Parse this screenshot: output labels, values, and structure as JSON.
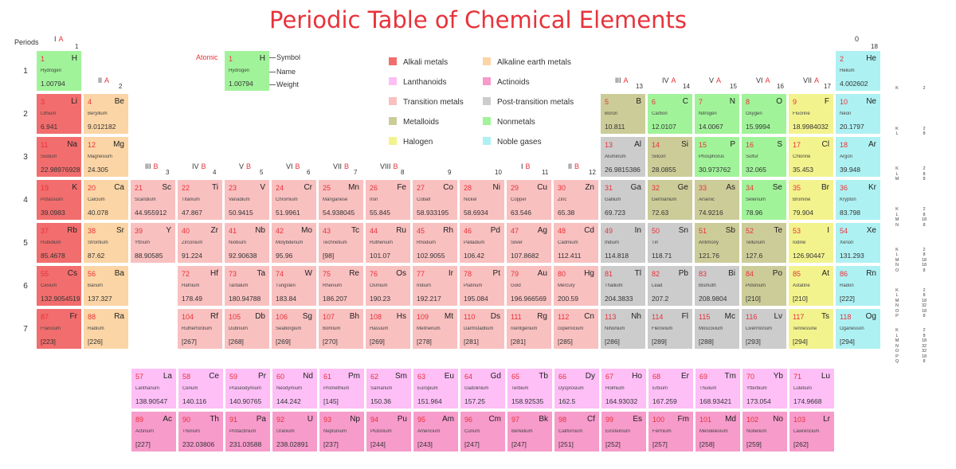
{
  "title": "Periodic Table of Chemical Elements",
  "periods_label": "Periods",
  "rows": [
    "1",
    "2",
    "3",
    "4",
    "5",
    "6",
    "7"
  ],
  "key": {
    "atomic_label": "Atomic",
    "symbol_label": "Symbol",
    "name_label": "Name",
    "weight_label": "Weight",
    "n": "1",
    "s": "H",
    "nm": "Hydrogen",
    "w": "1.00794"
  },
  "groups": [
    {
      "roman": "I",
      "letter": "A",
      "num": "1"
    },
    {
      "roman": "II",
      "letter": "A",
      "num": "2"
    },
    {
      "roman": "III",
      "letter": "B",
      "num": "3"
    },
    {
      "roman": "IV",
      "letter": "B",
      "num": "4"
    },
    {
      "roman": "V",
      "letter": "B",
      "num": "5"
    },
    {
      "roman": "VI",
      "letter": "B",
      "num": "6"
    },
    {
      "roman": "VII",
      "letter": "B",
      "num": "7"
    },
    {
      "roman": "VIII",
      "letter": "B",
      "num": "8"
    },
    {
      "roman": "",
      "letter": "",
      "num": "9"
    },
    {
      "roman": "",
      "letter": "",
      "num": "10"
    },
    {
      "roman": "I",
      "letter": "B",
      "num": "11"
    },
    {
      "roman": "II",
      "letter": "B",
      "num": "12"
    },
    {
      "roman": "III",
      "letter": "A",
      "num": "13"
    },
    {
      "roman": "IV",
      "letter": "A",
      "num": "14"
    },
    {
      "roman": "V",
      "letter": "A",
      "num": "15"
    },
    {
      "roman": "VI",
      "letter": "A",
      "num": "16"
    },
    {
      "roman": "VII",
      "letter": "A",
      "num": "17"
    },
    {
      "roman": "0",
      "letter": "",
      "num": "18"
    }
  ],
  "legend": [
    {
      "label": "Alkali metals",
      "color": "#f26d6d"
    },
    {
      "label": "Alkaline earth metals",
      "color": "#fbd5a5"
    },
    {
      "label": "Lanthanoids",
      "color": "#fdbff6"
    },
    {
      "label": "Actinoids",
      "color": "#f79bcb"
    },
    {
      "label": "Transition metals",
      "color": "#f9c0c0"
    },
    {
      "label": "Post-transition metals",
      "color": "#cccccc"
    },
    {
      "label": "Metalloids",
      "color": "#cccc99"
    },
    {
      "label": "Nonmetals",
      "color": "#a1f39a"
    },
    {
      "label": "Halogen",
      "color": "#f3f38e"
    },
    {
      "label": "Noble gases",
      "color": "#aef1f3"
    }
  ],
  "shells": [
    "K\t2",
    "K\t2\nL\t8",
    "K\t2\nL\t8\nM\t8",
    "K\t2\nL\t8\nM\t18\nN\t8",
    "K\t2\nL\t8\nM\t18\nN\t18\nO\t8",
    "K\t2\nL\t8\nM\t18\nN\t32\nO\t18\nP\t8",
    "K\t2\nL\t8\nM\t18\nN\t32\nO\t32\nP\t18\nQ\t8"
  ],
  "elements": [
    {
      "n": "1",
      "s": "H",
      "nm": "Hydrogen",
      "w": "1.00794",
      "c": "nonmetal",
      "col": 1,
      "row": 1
    },
    {
      "n": "2",
      "s": "He",
      "nm": "Helium",
      "w": "4.002602",
      "c": "noble",
      "col": 18,
      "row": 1
    },
    {
      "n": "3",
      "s": "Li",
      "nm": "Lithium",
      "w": "6.941",
      "c": "alkali",
      "col": 1,
      "row": 2
    },
    {
      "n": "4",
      "s": "Be",
      "nm": "Beryllium",
      "w": "9.012182",
      "c": "alkaline",
      "col": 2,
      "row": 2
    },
    {
      "n": "5",
      "s": "B",
      "nm": "Boron",
      "w": "10.811",
      "c": "metalloid",
      "col": 13,
      "row": 2
    },
    {
      "n": "6",
      "s": "C",
      "nm": "Carbon",
      "w": "12.0107",
      "c": "nonmetal",
      "col": 14,
      "row": 2
    },
    {
      "n": "7",
      "s": "N",
      "nm": "Nitrogen",
      "w": "14.0067",
      "c": "nonmetal",
      "col": 15,
      "row": 2
    },
    {
      "n": "8",
      "s": "O",
      "nm": "Oxygen",
      "w": "15.9994",
      "c": "nonmetal",
      "col": 16,
      "row": 2
    },
    {
      "n": "9",
      "s": "F",
      "nm": "Fluorine",
      "w": "18.9984032",
      "c": "halogen",
      "col": 17,
      "row": 2
    },
    {
      "n": "10",
      "s": "Ne",
      "nm": "Neon",
      "w": "20.1797",
      "c": "noble",
      "col": 18,
      "row": 2
    },
    {
      "n": "11",
      "s": "Na",
      "nm": "Sodium",
      "w": "22.98976928",
      "c": "alkali",
      "col": 1,
      "row": 3
    },
    {
      "n": "12",
      "s": "Mg",
      "nm": "Magnesium",
      "w": "24.305",
      "c": "alkaline",
      "col": 2,
      "row": 3
    },
    {
      "n": "13",
      "s": "Al",
      "nm": "Aluminum",
      "w": "26.9815386",
      "c": "post",
      "col": 13,
      "row": 3
    },
    {
      "n": "14",
      "s": "Si",
      "nm": "Silicon",
      "w": "28.0855",
      "c": "metalloid",
      "col": 14,
      "row": 3
    },
    {
      "n": "15",
      "s": "P",
      "nm": "Phosphorus",
      "w": "30.973762",
      "c": "nonmetal",
      "col": 15,
      "row": 3
    },
    {
      "n": "16",
      "s": "S",
      "nm": "Sulfur",
      "w": "32.065",
      "c": "nonmetal",
      "col": 16,
      "row": 3
    },
    {
      "n": "17",
      "s": "Cl",
      "nm": "Chlorine",
      "w": "35.453",
      "c": "halogen",
      "col": 17,
      "row": 3
    },
    {
      "n": "18",
      "s": "Ar",
      "nm": "Argon",
      "w": "39.948",
      "c": "noble",
      "col": 18,
      "row": 3
    },
    {
      "n": "19",
      "s": "K",
      "nm": "Potassium",
      "w": "39.0983",
      "c": "alkali",
      "col": 1,
      "row": 4
    },
    {
      "n": "20",
      "s": "Ca",
      "nm": "Calcium",
      "w": "40.078",
      "c": "alkaline",
      "col": 2,
      "row": 4
    },
    {
      "n": "21",
      "s": "Sc",
      "nm": "Scandium",
      "w": "44.955912",
      "c": "trans",
      "col": 3,
      "row": 4
    },
    {
      "n": "22",
      "s": "Ti",
      "nm": "Titanium",
      "w": "47.867",
      "c": "trans",
      "col": 4,
      "row": 4
    },
    {
      "n": "23",
      "s": "V",
      "nm": "Vanadium",
      "w": "50.9415",
      "c": "trans",
      "col": 5,
      "row": 4
    },
    {
      "n": "24",
      "s": "Cr",
      "nm": "Chromium",
      "w": "51.9961",
      "c": "trans",
      "col": 6,
      "row": 4
    },
    {
      "n": "25",
      "s": "Mn",
      "nm": "Manganese",
      "w": "54.938045",
      "c": "trans",
      "col": 7,
      "row": 4
    },
    {
      "n": "26",
      "s": "Fe",
      "nm": "Iron",
      "w": "55.845",
      "c": "trans",
      "col": 8,
      "row": 4
    },
    {
      "n": "27",
      "s": "Co",
      "nm": "Cobalt",
      "w": "58.933195",
      "c": "trans",
      "col": 9,
      "row": 4
    },
    {
      "n": "28",
      "s": "Ni",
      "nm": "Nickel",
      "w": "58.6934",
      "c": "trans",
      "col": 10,
      "row": 4
    },
    {
      "n": "29",
      "s": "Cu",
      "nm": "Copper",
      "w": "63.546",
      "c": "trans",
      "col": 11,
      "row": 4
    },
    {
      "n": "30",
      "s": "Zn",
      "nm": "Zinc",
      "w": "65.38",
      "c": "trans",
      "col": 12,
      "row": 4
    },
    {
      "n": "31",
      "s": "Ga",
      "nm": "Gallium",
      "w": "69.723",
      "c": "post",
      "col": 13,
      "row": 4
    },
    {
      "n": "32",
      "s": "Ge",
      "nm": "Germanium",
      "w": "72.63",
      "c": "metalloid",
      "col": 14,
      "row": 4
    },
    {
      "n": "33",
      "s": "As",
      "nm": "Arsenic",
      "w": "74.9216",
      "c": "metalloid",
      "col": 15,
      "row": 4
    },
    {
      "n": "34",
      "s": "Se",
      "nm": "Selenium",
      "w": "78.96",
      "c": "nonmetal",
      "col": 16,
      "row": 4
    },
    {
      "n": "35",
      "s": "Br",
      "nm": "Bromine",
      "w": "79.904",
      "c": "halogen",
      "col": 17,
      "row": 4
    },
    {
      "n": "36",
      "s": "Kr",
      "nm": "Krypton",
      "w": "83.798",
      "c": "noble",
      "col": 18,
      "row": 4
    },
    {
      "n": "37",
      "s": "Rb",
      "nm": "Rubidium",
      "w": "85.4678",
      "c": "alkali",
      "col": 1,
      "row": 5
    },
    {
      "n": "38",
      "s": "Sr",
      "nm": "Strontium",
      "w": "87.62",
      "c": "alkaline",
      "col": 2,
      "row": 5
    },
    {
      "n": "39",
      "s": "Y",
      "nm": "Yttrium",
      "w": "88.90585",
      "c": "trans",
      "col": 3,
      "row": 5
    },
    {
      "n": "40",
      "s": "Zr",
      "nm": "Zirconium",
      "w": "91.224",
      "c": "trans",
      "col": 4,
      "row": 5
    },
    {
      "n": "41",
      "s": "Nb",
      "nm": "Niobium",
      "w": "92.90638",
      "c": "trans",
      "col": 5,
      "row": 5
    },
    {
      "n": "42",
      "s": "Mo",
      "nm": "Molybdenum",
      "w": "95.96",
      "c": "trans",
      "col": 6,
      "row": 5
    },
    {
      "n": "43",
      "s": "Tc",
      "nm": "Technetium",
      "w": "[98]",
      "c": "trans",
      "col": 7,
      "row": 5
    },
    {
      "n": "44",
      "s": "Ru",
      "nm": "Ruthenium",
      "w": "101.07",
      "c": "trans",
      "col": 8,
      "row": 5
    },
    {
      "n": "45",
      "s": "Rh",
      "nm": "Rhodium",
      "w": "102.9055",
      "c": "trans",
      "col": 9,
      "row": 5
    },
    {
      "n": "46",
      "s": "Pd",
      "nm": "Palladium",
      "w": "106.42",
      "c": "trans",
      "col": 10,
      "row": 5
    },
    {
      "n": "47",
      "s": "Ag",
      "nm": "Silver",
      "w": "107.8682",
      "c": "trans",
      "col": 11,
      "row": 5
    },
    {
      "n": "48",
      "s": "Cd",
      "nm": "Cadmium",
      "w": "112.411",
      "c": "trans",
      "col": 12,
      "row": 5
    },
    {
      "n": "49",
      "s": "In",
      "nm": "Indium",
      "w": "114.818",
      "c": "post",
      "col": 13,
      "row": 5
    },
    {
      "n": "50",
      "s": "Sn",
      "nm": "Tin",
      "w": "118.71",
      "c": "post",
      "col": 14,
      "row": 5
    },
    {
      "n": "51",
      "s": "Sb",
      "nm": "Antimony",
      "w": "121.76",
      "c": "metalloid",
      "col": 15,
      "row": 5
    },
    {
      "n": "52",
      "s": "Te",
      "nm": "Tellurium",
      "w": "127.6",
      "c": "metalloid",
      "col": 16,
      "row": 5
    },
    {
      "n": "53",
      "s": "I",
      "nm": "Iodine",
      "w": "126.90447",
      "c": "halogen",
      "col": 17,
      "row": 5
    },
    {
      "n": "54",
      "s": "Xe",
      "nm": "Xenon",
      "w": "131.293",
      "c": "noble",
      "col": 18,
      "row": 5
    },
    {
      "n": "55",
      "s": "Cs",
      "nm": "Cesium",
      "w": "132.9054519",
      "c": "alkali",
      "col": 1,
      "row": 6
    },
    {
      "n": "56",
      "s": "Ba",
      "nm": "Barium",
      "w": "137.327",
      "c": "alkaline",
      "col": 2,
      "row": 6
    },
    {
      "n": "72",
      "s": "Hf",
      "nm": "Hafnium",
      "w": "178.49",
      "c": "trans",
      "col": 4,
      "row": 6
    },
    {
      "n": "73",
      "s": "Ta",
      "nm": "Tantalum",
      "w": "180.94788",
      "c": "trans",
      "col": 5,
      "row": 6
    },
    {
      "n": "74",
      "s": "W",
      "nm": "Tungsten",
      "w": "183.84",
      "c": "trans",
      "col": 6,
      "row": 6
    },
    {
      "n": "75",
      "s": "Re",
      "nm": "Rhenium",
      "w": "186.207",
      "c": "trans",
      "col": 7,
      "row": 6
    },
    {
      "n": "76",
      "s": "Os",
      "nm": "Osmium",
      "w": "190.23",
      "c": "trans",
      "col": 8,
      "row": 6
    },
    {
      "n": "77",
      "s": "Ir",
      "nm": "Iridium",
      "w": "192.217",
      "c": "trans",
      "col": 9,
      "row": 6
    },
    {
      "n": "78",
      "s": "Pt",
      "nm": "Platinum",
      "w": "195.084",
      "c": "trans",
      "col": 10,
      "row": 6
    },
    {
      "n": "79",
      "s": "Au",
      "nm": "Gold",
      "w": "196.966569",
      "c": "trans",
      "col": 11,
      "row": 6
    },
    {
      "n": "80",
      "s": "Hg",
      "nm": "Mercury",
      "w": "200.59",
      "c": "trans",
      "col": 12,
      "row": 6
    },
    {
      "n": "81",
      "s": "Tl",
      "nm": "Thallium",
      "w": "204.3833",
      "c": "post",
      "col": 13,
      "row": 6
    },
    {
      "n": "82",
      "s": "Pb",
      "nm": "Lead",
      "w": "207.2",
      "c": "post",
      "col": 14,
      "row": 6
    },
    {
      "n": "83",
      "s": "Bi",
      "nm": "Bismuth",
      "w": "208.9804",
      "c": "post",
      "col": 15,
      "row": 6
    },
    {
      "n": "84",
      "s": "Po",
      "nm": "Polonium",
      "w": "[210]",
      "c": "metalloid",
      "col": 16,
      "row": 6
    },
    {
      "n": "85",
      "s": "At",
      "nm": "Astatine",
      "w": "[210]",
      "c": "halogen",
      "col": 17,
      "row": 6
    },
    {
      "n": "86",
      "s": "Rn",
      "nm": "Radon",
      "w": "[222]",
      "c": "noble",
      "col": 18,
      "row": 6
    },
    {
      "n": "87",
      "s": "Fr",
      "nm": "Francium",
      "w": "[223]",
      "c": "alkali",
      "col": 1,
      "row": 7
    },
    {
      "n": "88",
      "s": "Ra",
      "nm": "Radium",
      "w": "[226]",
      "c": "alkaline",
      "col": 2,
      "row": 7
    },
    {
      "n": "104",
      "s": "Rf",
      "nm": "Rutherfordium",
      "w": "[267]",
      "c": "trans",
      "col": 4,
      "row": 7
    },
    {
      "n": "105",
      "s": "Db",
      "nm": "Dubnium",
      "w": "[268]",
      "c": "trans",
      "col": 5,
      "row": 7
    },
    {
      "n": "106",
      "s": "Sg",
      "nm": "Seaborgium",
      "w": "[269]",
      "c": "trans",
      "col": 6,
      "row": 7
    },
    {
      "n": "107",
      "s": "Bh",
      "nm": "Bohrium",
      "w": "[270]",
      "c": "trans",
      "col": 7,
      "row": 7
    },
    {
      "n": "108",
      "s": "Hs",
      "nm": "Hassium",
      "w": "[269]",
      "c": "trans",
      "col": 8,
      "row": 7
    },
    {
      "n": "109",
      "s": "Mt",
      "nm": "Meitnerium",
      "w": "[278]",
      "c": "trans",
      "col": 9,
      "row": 7
    },
    {
      "n": "110",
      "s": "Ds",
      "nm": "Darmstadtium",
      "w": "[281]",
      "c": "trans",
      "col": 10,
      "row": 7
    },
    {
      "n": "111",
      "s": "Rg",
      "nm": "roentgenium",
      "w": "[281]",
      "c": "trans",
      "col": 11,
      "row": 7
    },
    {
      "n": "112",
      "s": "Cn",
      "nm": "copernicium",
      "w": "[285]",
      "c": "trans",
      "col": 12,
      "row": 7
    },
    {
      "n": "113",
      "s": "Nh",
      "nm": "Nihonium",
      "w": "[286]",
      "c": "post",
      "col": 13,
      "row": 7
    },
    {
      "n": "114",
      "s": "Fl",
      "nm": "Flerovium",
      "w": "[289]",
      "c": "post",
      "col": 14,
      "row": 7
    },
    {
      "n": "115",
      "s": "Mc",
      "nm": "Moscovium",
      "w": "[288]",
      "c": "post",
      "col": 15,
      "row": 7
    },
    {
      "n": "116",
      "s": "Lv",
      "nm": "Livermorium",
      "w": "[293]",
      "c": "post",
      "col": 16,
      "row": 7
    },
    {
      "n": "117",
      "s": "Ts",
      "nm": "Tennessine",
      "w": "[294]",
      "c": "halogen",
      "col": 17,
      "row": 7
    },
    {
      "n": "118",
      "s": "Og",
      "nm": "Oganesson",
      "w": "[294]",
      "c": "noble",
      "col": 18,
      "row": 7
    }
  ],
  "lanthanoids": [
    {
      "n": "57",
      "s": "La",
      "nm": "Lanthanum",
      "w": "138.90547"
    },
    {
      "n": "58",
      "s": "Ce",
      "nm": "Cerium",
      "w": "140.116"
    },
    {
      "n": "59",
      "s": "Pr",
      "nm": "Praseodymium",
      "w": "140.90765"
    },
    {
      "n": "60",
      "s": "Nd",
      "nm": "Neodymium",
      "w": "144.242"
    },
    {
      "n": "61",
      "s": "Pm",
      "nm": "Promethium",
      "w": "[145]"
    },
    {
      "n": "62",
      "s": "Sm",
      "nm": "Samarium",
      "w": "150.36"
    },
    {
      "n": "63",
      "s": "Eu",
      "nm": "Europium",
      "w": "151.964"
    },
    {
      "n": "64",
      "s": "Gd",
      "nm": "Gadolinium",
      "w": "157.25"
    },
    {
      "n": "65",
      "s": "Tb",
      "nm": "Terbium",
      "w": "158.92535"
    },
    {
      "n": "66",
      "s": "Dy",
      "nm": "Dysprosium",
      "w": "162.5"
    },
    {
      "n": "67",
      "s": "Ho",
      "nm": "Holmium",
      "w": "164.93032"
    },
    {
      "n": "68",
      "s": "Er",
      "nm": "Erbium",
      "w": "167.259"
    },
    {
      "n": "69",
      "s": "Tm",
      "nm": "Thulium",
      "w": "168.93421"
    },
    {
      "n": "70",
      "s": "Yb",
      "nm": "Ytterbium",
      "w": "173.054"
    },
    {
      "n": "71",
      "s": "Lu",
      "nm": "Lutetium",
      "w": "174.9668"
    }
  ],
  "actinoids": [
    {
      "n": "89",
      "s": "Ac",
      "nm": "Actinium",
      "w": "[227]"
    },
    {
      "n": "90",
      "s": "Th",
      "nm": "Thorium",
      "w": "232.03806"
    },
    {
      "n": "91",
      "s": "Pa",
      "nm": "Protactinium",
      "w": "231.03588"
    },
    {
      "n": "92",
      "s": "U",
      "nm": "Uranium",
      "w": "238.02891"
    },
    {
      "n": "93",
      "s": "Np",
      "nm": "Neptunium",
      "w": "[237]"
    },
    {
      "n": "94",
      "s": "Pu",
      "nm": "Plutonium",
      "w": "[244]"
    },
    {
      "n": "95",
      "s": "Am",
      "nm": "Americium",
      "w": "[243]"
    },
    {
      "n": "96",
      "s": "Cm",
      "nm": "Curium",
      "w": "[247]"
    },
    {
      "n": "97",
      "s": "Bk",
      "nm": "Berkelium",
      "w": "[247]"
    },
    {
      "n": "98",
      "s": "Cf",
      "nm": "Californium",
      "w": "[251]"
    },
    {
      "n": "99",
      "s": "Es",
      "nm": "Einsteinium",
      "w": "[252]"
    },
    {
      "n": "100",
      "s": "Fm",
      "nm": "Fermium",
      "w": "[257]"
    },
    {
      "n": "101",
      "s": "Md",
      "nm": "Mendelevium",
      "w": "[258]"
    },
    {
      "n": "102",
      "s": "No",
      "nm": "Nobelium",
      "w": "[259]"
    },
    {
      "n": "103",
      "s": "Lr",
      "nm": "Lawrencium",
      "w": "[262]"
    }
  ]
}
